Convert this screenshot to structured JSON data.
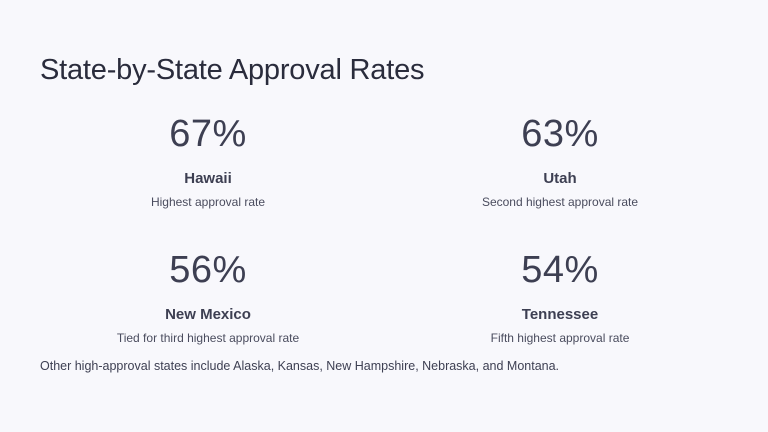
{
  "slide": {
    "title": "State-by-State Approval Rates",
    "stats": [
      {
        "value": "67%",
        "state": "Hawaii",
        "description": "Highest approval rate"
      },
      {
        "value": "63%",
        "state": "Utah",
        "description": "Second highest approval rate"
      },
      {
        "value": "56%",
        "state": "New Mexico",
        "description": "Tied for third highest approval rate"
      },
      {
        "value": "54%",
        "state": "Tennessee",
        "description": "Fifth highest approval rate"
      }
    ],
    "footnote": "Other high-approval states include Alaska, Kansas, New Hampshire, Nebraska, and Montana."
  },
  "colors": {
    "background": "#f8f8fc",
    "text": "#3d3f52"
  }
}
